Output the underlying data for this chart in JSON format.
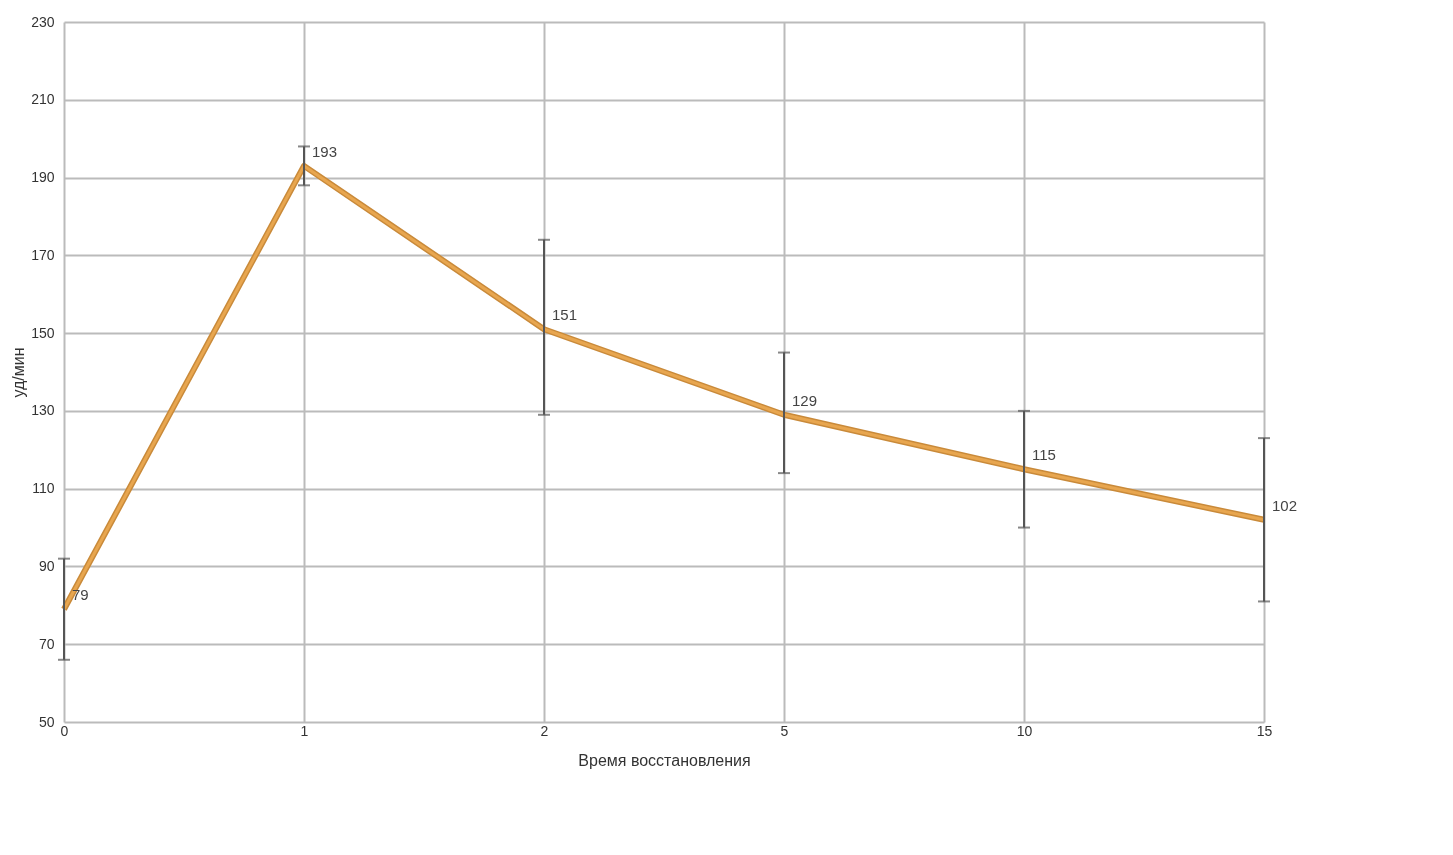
{
  "chart_data": {
    "type": "line",
    "xlabel": "Время восстановления",
    "ylabel": "уд/мин",
    "categories": [
      "0",
      "1",
      "2",
      "5",
      "10",
      "15"
    ],
    "values": [
      79,
      193,
      151,
      129,
      115,
      102
    ],
    "errors": [
      [
        66,
        92
      ],
      [
        188,
        198
      ],
      [
        129,
        174
      ],
      [
        114,
        145
      ],
      [
        100,
        130
      ],
      [
        81,
        123
      ]
    ],
    "color": "#e8a64f",
    "data_labels": true,
    "ylim": [
      50,
      230
    ],
    "yticks": [
      50,
      70,
      90,
      110,
      130,
      150,
      170,
      190,
      210,
      230
    ],
    "grid": true,
    "marker": "none",
    "line_style": "solid"
  }
}
